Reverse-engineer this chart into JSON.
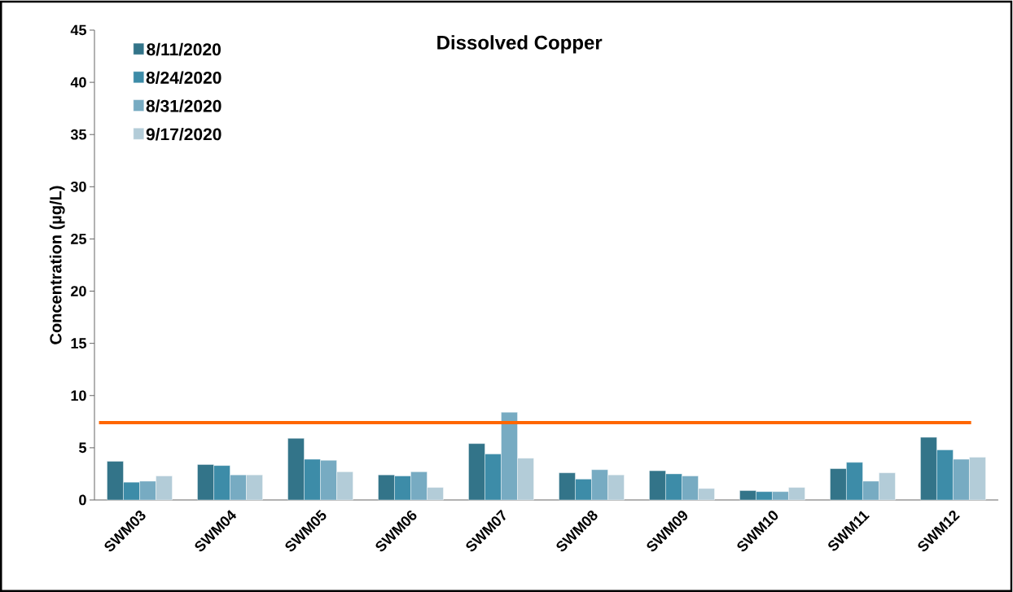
{
  "chart_data": {
    "type": "bar",
    "title": "Dissolved Copper",
    "ylabel": "Concentration (µg/L)",
    "categories": [
      "SWM03",
      "SWM04",
      "SWM05",
      "SWM06",
      "SWM07",
      "SWM08",
      "SWM09",
      "SWM10",
      "SWM11",
      "SWM12"
    ],
    "series": [
      {
        "name": "8/11/2020",
        "color": "#337489",
        "values": [
          3.7,
          3.4,
          5.9,
          2.4,
          5.4,
          2.6,
          2.8,
          0.9,
          3.0,
          6.0
        ]
      },
      {
        "name": "8/24/2020",
        "color": "#3d8ca8",
        "values": [
          1.7,
          3.3,
          3.9,
          2.3,
          4.4,
          2.0,
          2.5,
          0.8,
          3.6,
          4.8
        ]
      },
      {
        "name": "8/31/2020",
        "color": "#77abc2",
        "values": [
          1.8,
          2.4,
          3.8,
          2.7,
          8.4,
          2.9,
          2.3,
          0.8,
          1.8,
          3.9
        ]
      },
      {
        "name": "9/17/2020",
        "color": "#b3ccd8",
        "values": [
          2.3,
          2.4,
          2.7,
          1.2,
          4.0,
          2.4,
          1.1,
          1.2,
          2.6,
          4.1
        ]
      }
    ],
    "ylim": [
      0,
      45
    ],
    "yticks": [
      0,
      5,
      10,
      15,
      20,
      25,
      30,
      35,
      40,
      45
    ],
    "ref_lines": [
      {
        "axis": "y",
        "value": 7.4,
        "color": "#ff6600"
      }
    ],
    "grid": false,
    "legend": "top left"
  }
}
